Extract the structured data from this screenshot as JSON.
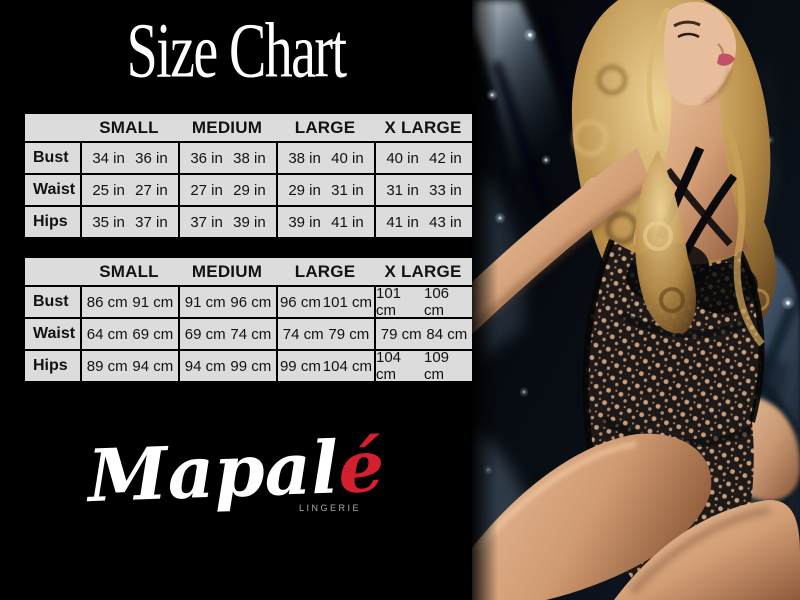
{
  "page": {
    "title": "Size Chart",
    "background_color": "#000000",
    "title_color": "#ffffff"
  },
  "size_tables": {
    "inches": {
      "columns": [
        "SMALL",
        "MEDIUM",
        "LARGE",
        "X LARGE"
      ],
      "rows": [
        {
          "label": "Bust",
          "values": [
            [
              "34 in",
              "36 in"
            ],
            [
              "36 in",
              "38 in"
            ],
            [
              "38 in",
              "40 in"
            ],
            [
              "40 in",
              "42 in"
            ]
          ]
        },
        {
          "label": "Waist",
          "values": [
            [
              "25 in",
              "27 in"
            ],
            [
              "27 in",
              "29 in"
            ],
            [
              "29 in",
              "31 in"
            ],
            [
              "31 in",
              "33 in"
            ]
          ]
        },
        {
          "label": "Hips",
          "values": [
            [
              "35 in",
              "37 in"
            ],
            [
              "37 in",
              "39 in"
            ],
            [
              "39 in",
              "41 in"
            ],
            [
              "41 in",
              "43 in"
            ]
          ]
        }
      ]
    },
    "centimeters": {
      "columns": [
        "SMALL",
        "MEDIUM",
        "LARGE",
        "X LARGE"
      ],
      "rows": [
        {
          "label": "Bust",
          "values": [
            [
              "86 cm",
              "91 cm"
            ],
            [
              "91 cm",
              "96 cm"
            ],
            [
              "96 cm",
              "101 cm"
            ],
            [
              "101 cm",
              "106 cm"
            ]
          ]
        },
        {
          "label": "Waist",
          "values": [
            [
              "64 cm",
              "69 cm"
            ],
            [
              "69 cm",
              "74 cm"
            ],
            [
              "74 cm",
              "79 cm"
            ],
            [
              "79 cm",
              "84 cm"
            ]
          ]
        },
        {
          "label": "Hips",
          "values": [
            [
              "89 cm",
              "94 cm"
            ],
            [
              "94 cm",
              "99 cm"
            ],
            [
              "99 cm",
              "104 cm"
            ],
            [
              "104 cm",
              "109 cm"
            ]
          ]
        }
      ]
    }
  },
  "table_style": {
    "cell_background": "#dcdcdc",
    "text_color": "#121212",
    "grid_color": "#000000"
  },
  "brand": {
    "wordmark": "Mapalé",
    "wordmark_main": "Mapal",
    "wordmark_accent": "é",
    "tagline": "LINGERIE",
    "wordmark_color": "#ffffff",
    "accent_color": "#d41f2f",
    "tagline_color": "#ababab"
  },
  "photo": {
    "description": "model-in-black-lace-bodysuit-on-blue-tufted-upholstery",
    "palette": {
      "upholstery_blue": "#44586c",
      "upholstery_highlight": "#c3d3e0",
      "sparkle": "#eaf6ff",
      "skin": "#d8a57f",
      "hair_blonde": "#c9a25c",
      "lace_black": "#0a0a0d",
      "lips": "#c25163"
    }
  }
}
